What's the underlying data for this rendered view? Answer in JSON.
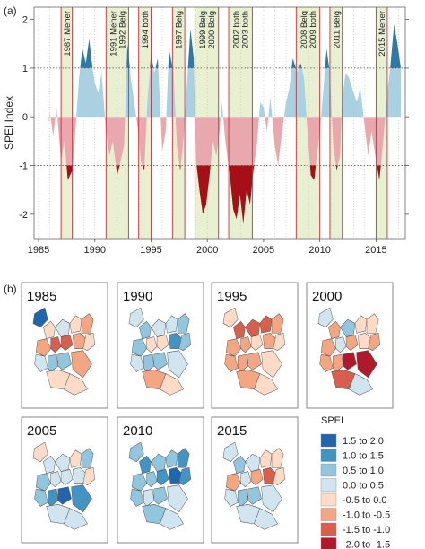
{
  "chart_data": [
    {
      "type": "area",
      "panel_label": "(a)",
      "title": "",
      "xlabel": "",
      "ylabel": "SPEI Index",
      "xlim": [
        1984.6,
        2017.6
      ],
      "ylim": [
        -2.5,
        2.25
      ],
      "x_ticks": [
        "1985",
        "1990",
        "1995",
        "2000",
        "2005",
        "2010",
        "2015"
      ],
      "x_tick_values": [
        1985,
        1990,
        1995,
        2000,
        2005,
        2010,
        2015
      ],
      "y_ticks": [
        "-2",
        "-1",
        "0",
        "1",
        "2"
      ],
      "y_tick_values": [
        -2,
        -1,
        0,
        1,
        2
      ],
      "grid": true,
      "reference_lines": [
        -1,
        1
      ],
      "colors": {
        "dry_extreme": "#a50f15",
        "dry": "#e8a8ae",
        "wet": "#a9d1e2",
        "wet_extreme": "#2e79a6",
        "drought_band": "#e9f0d2",
        "drought_edge": "#c9313c",
        "guide": "#b3b3b3"
      },
      "drought_events": [
        {
          "label": "1987 Meher",
          "start": 1987.0,
          "end": 1988.0
        },
        {
          "label": "1991 Meher\n1992 Belg",
          "start": 1991.0,
          "end": 1993.0
        },
        {
          "label": "1994 both",
          "start": 1993.9,
          "end": 1995.0
        },
        {
          "label": "1997 Belg",
          "start": 1996.9,
          "end": 1998.0
        },
        {
          "label": "1999 Belg\n2000 Belg",
          "start": 1998.9,
          "end": 2001.0
        },
        {
          "label": "2002 both\n2003 both",
          "start": 2001.9,
          "end": 2004.0
        },
        {
          "label": "2008 Belg\n2009 both",
          "start": 2007.9,
          "end": 2010.0
        },
        {
          "label": "2011 Belg",
          "start": 2010.9,
          "end": 2012.0
        },
        {
          "label": "2015 Meher",
          "start": 2015.0,
          "end": 2016.0
        }
      ],
      "series": [
        {
          "x": [
            1985.8,
            1986.0,
            1986.3,
            1986.6,
            1987.0,
            1987.3,
            1987.6,
            1988.0,
            1988.3,
            1988.6,
            1988.9,
            1989.2,
            1989.5,
            1989.8,
            1990.0,
            1990.3,
            1990.6,
            1991.0,
            1991.3,
            1991.6,
            1992.0,
            1992.3,
            1992.6,
            1992.9,
            1993.2,
            1993.5,
            1993.8,
            1994.1,
            1994.4,
            1994.7,
            1995.0,
            1995.3,
            1995.6,
            1996.0,
            1996.3,
            1996.6,
            1997.0,
            1997.3,
            1997.6,
            1997.9,
            1998.2,
            1998.5,
            1998.8,
            1999.0,
            1999.3,
            1999.6,
            1999.9,
            2000.2,
            2000.5,
            2000.8,
            2001.0,
            2001.3,
            2001.6,
            2002.0,
            2002.3,
            2002.6,
            2002.9,
            2003.2,
            2003.5,
            2003.8,
            2004.1,
            2004.4,
            2004.7,
            2005.0,
            2005.3,
            2005.6,
            2006.0,
            2006.3,
            2006.6,
            2007.0,
            2007.3,
            2007.6,
            2008.0,
            2008.3,
            2008.6,
            2008.9,
            2009.2,
            2009.5,
            2009.8,
            2010.0,
            2010.3,
            2010.6,
            2010.9,
            2011.2,
            2011.5,
            2011.8,
            2012.0,
            2012.3,
            2012.6,
            2013.0,
            2013.3,
            2013.6,
            2014.0,
            2014.3,
            2014.6,
            2015.0,
            2015.3,
            2015.6,
            2016.0,
            2016.3,
            2016.6,
            2016.9,
            2017.2
          ],
          "y": [
            -0.3,
            0.1,
            -0.4,
            0.2,
            -0.9,
            -0.5,
            -1.3,
            -1.1,
            -0.2,
            0.8,
            1.4,
            1.1,
            1.6,
            1.0,
            0.7,
            0.5,
            0.9,
            -0.3,
            -0.8,
            -0.5,
            -1.2,
            -0.9,
            -0.6,
            1.5,
            0.8,
            0.3,
            -0.2,
            -0.9,
            -1.1,
            0.4,
            1.3,
            0.9,
            1.2,
            -0.7,
            -0.3,
            1.4,
            0.9,
            -0.6,
            -1.1,
            -0.4,
            0.7,
            1.8,
            1.2,
            -0.9,
            -1.5,
            -2.0,
            -1.8,
            -1.2,
            -0.5,
            -0.8,
            -0.5,
            0.3,
            -0.5,
            -1.2,
            -1.9,
            -2.1,
            -1.6,
            -2.2,
            -1.5,
            -1.8,
            -1.1,
            -0.6,
            0.3,
            0.2,
            -0.3,
            0.4,
            -0.6,
            -1.0,
            -0.4,
            0.3,
            0.6,
            1.2,
            0.9,
            1.1,
            0.8,
            -0.3,
            -1.2,
            -1.3,
            -0.7,
            -0.3,
            0.5,
            1.4,
            0.9,
            -0.6,
            -1.1,
            -0.8,
            0.4,
            0.9,
            0.8,
            0.5,
            0.3,
            0.6,
            -0.2,
            -0.8,
            -0.3,
            -0.9,
            -1.3,
            -0.6,
            0.5,
            1.1,
            1.9,
            1.5,
            1.0
          ]
        }
      ]
    },
    {
      "type": "choropleth",
      "panel_label": "(b)",
      "legend_title": "SPEI",
      "legend": [
        {
          "label": "1.5 to 2.0",
          "color": "#2166ac"
        },
        {
          "label": "1.0 to 1.5",
          "color": "#4393c3"
        },
        {
          "label": "0.5 to 1.0",
          "color": "#92c5de"
        },
        {
          "label": "0.0 to 0.5",
          "color": "#d1e5f0"
        },
        {
          "label": "-0.5 to 0.0",
          "color": "#fddbc7"
        },
        {
          "label": "-1.0 to -0.5",
          "color": "#f4a582"
        },
        {
          "label": "-1.5 to -1.0",
          "color": "#d6604d"
        },
        {
          "label": "-2.0 to -1.5",
          "color": "#b2182b"
        }
      ],
      "maps": [
        {
          "year": "1985",
          "classes": [
            0,
            4,
            3,
            4,
            5,
            5,
            6,
            6,
            5,
            4,
            3,
            2,
            2,
            5,
            4,
            4
          ]
        },
        {
          "year": "1990",
          "classes": [
            3,
            2,
            3,
            3,
            2,
            2,
            4,
            4,
            1,
            2,
            3,
            2,
            2,
            3,
            5,
            4
          ]
        },
        {
          "year": "1995",
          "classes": [
            4,
            6,
            6,
            6,
            5,
            5,
            5,
            4,
            5,
            4,
            5,
            5,
            5,
            4,
            5,
            4
          ]
        },
        {
          "year": "2000",
          "classes": [
            3,
            5,
            2,
            4,
            4,
            5,
            3,
            5,
            4,
            5,
            5,
            5,
            7,
            7,
            6,
            3
          ]
        },
        {
          "year": "2005",
          "classes": [
            4,
            3,
            3,
            4,
            2,
            2,
            3,
            3,
            3,
            4,
            2,
            1,
            0,
            1,
            3,
            3
          ]
        },
        {
          "year": "2010",
          "classes": [
            2,
            1,
            2,
            2,
            1,
            2,
            2,
            1,
            0,
            1,
            2,
            3,
            2,
            3,
            2,
            3
          ]
        },
        {
          "year": "2015",
          "classes": [
            3,
            2,
            3,
            4,
            4,
            5,
            3,
            5,
            6,
            4,
            3,
            2,
            2,
            3,
            3,
            3
          ]
        }
      ]
    }
  ]
}
